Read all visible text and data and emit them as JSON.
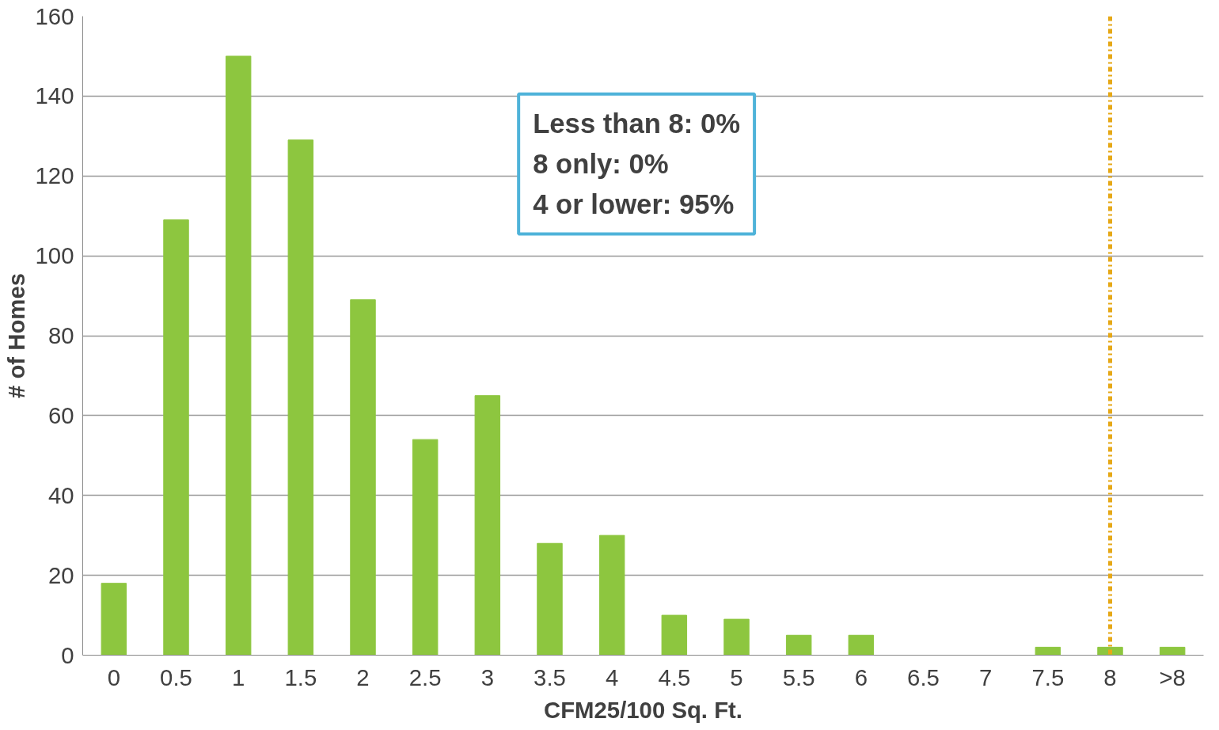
{
  "chart_data": {
    "type": "bar",
    "xlabel": "CFM25/100 Sq. Ft.",
    "ylabel": "# of Homes",
    "categories": [
      "0",
      "0.5",
      "1",
      "1.5",
      "2",
      "2.5",
      "3",
      "3.5",
      "4",
      "4.5",
      "5",
      "5.5",
      "6",
      "6.5",
      "7",
      "7.5",
      "8",
      ">8"
    ],
    "values": [
      18,
      109,
      150,
      129,
      89,
      54,
      65,
      28,
      30,
      10,
      9,
      5,
      5,
      0,
      0,
      2,
      2,
      2
    ],
    "color": "#8dc63f",
    "ylim": [
      0,
      160
    ],
    "yticks": [
      0,
      20,
      40,
      60,
      80,
      100,
      120,
      140,
      160
    ],
    "grid": "y",
    "ref_lines": [
      {
        "axis": "x",
        "value": "8",
        "color": "#e6a817",
        "line_style": "dashdot"
      }
    ],
    "annotations": [
      "Less than 8: 0%",
      "8 only: 0%",
      "4 or lower: 95%"
    ]
  }
}
